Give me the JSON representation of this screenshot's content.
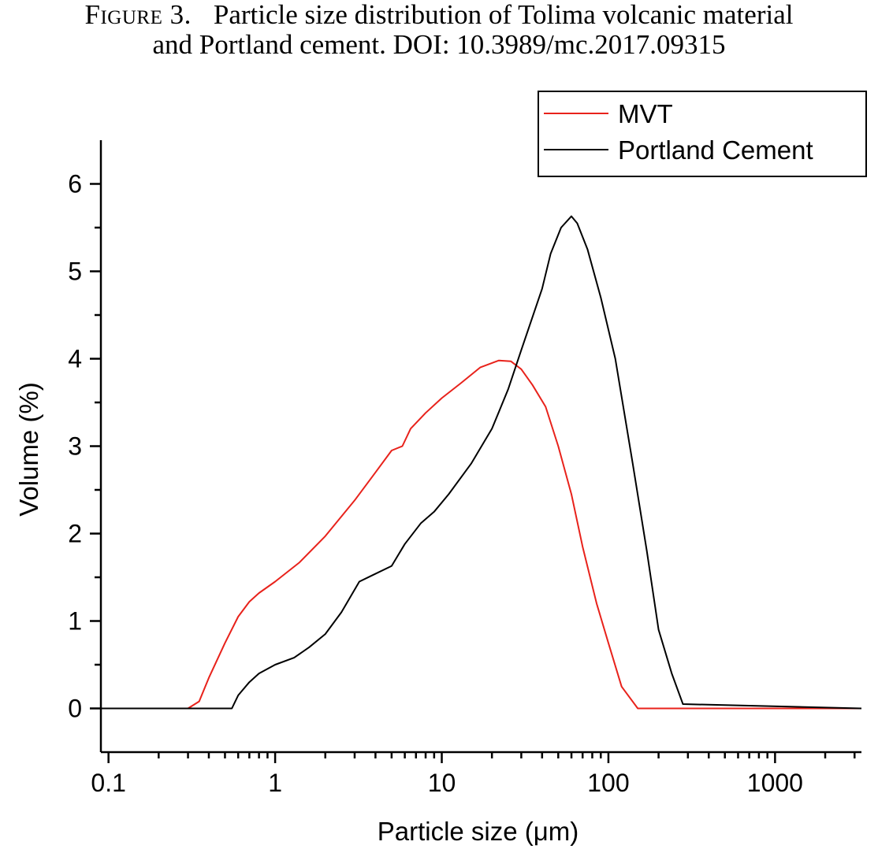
{
  "caption": {
    "label": "Figure 3.",
    "line1": "Particle size distribution of Tolima volcanic material",
    "line2": "and Portland cement. DOI: 10.3989/mc.2017.09315"
  },
  "colors": {
    "MVT": "#e8221b",
    "Portland Cement": "#000000"
  },
  "chart_data": {
    "type": "line",
    "xscale": "log",
    "xlabel": "Particle size (μm)",
    "ylabel": "Volume (%)",
    "xlim": [
      0.09,
      3300
    ],
    "ylim": [
      -0.5,
      6.5
    ],
    "grid": false,
    "legend": "top-right",
    "xticks": [
      0.1,
      1,
      10,
      100,
      1000
    ],
    "xtick_labels": [
      "0.1",
      "1",
      "10",
      "100",
      "1000"
    ],
    "yticks": [
      0,
      1,
      2,
      3,
      4,
      5,
      6
    ],
    "ytick_labels": [
      "0",
      "1",
      "2",
      "3",
      "4",
      "5",
      "6"
    ],
    "series": [
      {
        "name": "MVT",
        "x": [
          0.09,
          0.3,
          0.35,
          0.4,
          0.5,
          0.6,
          0.7,
          0.8,
          1.0,
          1.4,
          2.0,
          3.0,
          4.0,
          5.0,
          5.8,
          6.5,
          8.0,
          10.0,
          13.0,
          17.0,
          22.0,
          26.0,
          30.0,
          35.0,
          42.0,
          50.0,
          60.0,
          70.0,
          85.0,
          100.0,
          120.0,
          150.0,
          200.0,
          3300
        ],
        "y": [
          0,
          0,
          0.08,
          0.35,
          0.75,
          1.05,
          1.22,
          1.32,
          1.45,
          1.67,
          1.97,
          2.38,
          2.7,
          2.95,
          3.0,
          3.2,
          3.38,
          3.55,
          3.72,
          3.9,
          3.98,
          3.97,
          3.88,
          3.7,
          3.45,
          3.0,
          2.45,
          1.85,
          1.2,
          0.75,
          0.25,
          0.0,
          0,
          0
        ]
      },
      {
        "name": "Portland Cement",
        "x": [
          0.09,
          0.5,
          0.55,
          0.6,
          0.7,
          0.8,
          1.0,
          1.3,
          1.6,
          2.0,
          2.5,
          3.2,
          3.8,
          5.0,
          6.0,
          7.5,
          9.0,
          11.0,
          15.0,
          20.0,
          25.0,
          30.0,
          40.0,
          45.0,
          52.0,
          60.0,
          65.0,
          75.0,
          90.0,
          110.0,
          140.0,
          170.0,
          200.0,
          240.0,
          280.0,
          3300
        ],
        "y": [
          0,
          0,
          0.0,
          0.15,
          0.3,
          0.4,
          0.5,
          0.58,
          0.7,
          0.85,
          1.1,
          1.45,
          1.52,
          1.63,
          1.88,
          2.12,
          2.25,
          2.45,
          2.8,
          3.2,
          3.65,
          4.1,
          4.8,
          5.2,
          5.5,
          5.63,
          5.55,
          5.25,
          4.7,
          4.0,
          2.8,
          1.8,
          0.9,
          0.4,
          0.05,
          0
        ]
      }
    ]
  }
}
